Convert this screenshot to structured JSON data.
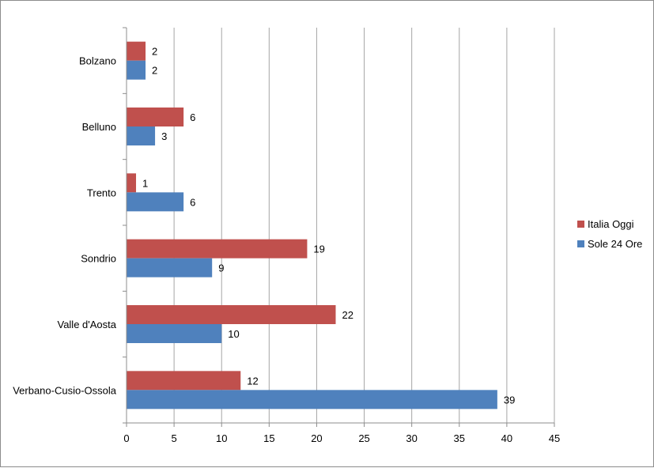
{
  "chart_data": {
    "type": "bar",
    "orientation": "horizontal",
    "categories": [
      "Bolzano",
      "Belluno",
      "Trento",
      "Sondrio",
      "Valle d'Aosta",
      "Verbano-Cusio-Ossola"
    ],
    "series": [
      {
        "name": "Italia Oggi",
        "color": "#c0504d",
        "values": [
          2,
          6,
          1,
          19,
          22,
          12
        ]
      },
      {
        "name": "Sole 24 Ore",
        "color": "#4f81bd",
        "values": [
          2,
          3,
          6,
          9,
          10,
          39
        ]
      }
    ],
    "xlim": [
      0,
      45
    ],
    "x_ticks": [
      "0",
      "5",
      "10",
      "15",
      "20",
      "25",
      "30",
      "35",
      "40",
      "45"
    ],
    "grid": "vertical",
    "data_labels": true,
    "legend_position": "right",
    "title": "",
    "xlabel": "",
    "ylabel": ""
  }
}
